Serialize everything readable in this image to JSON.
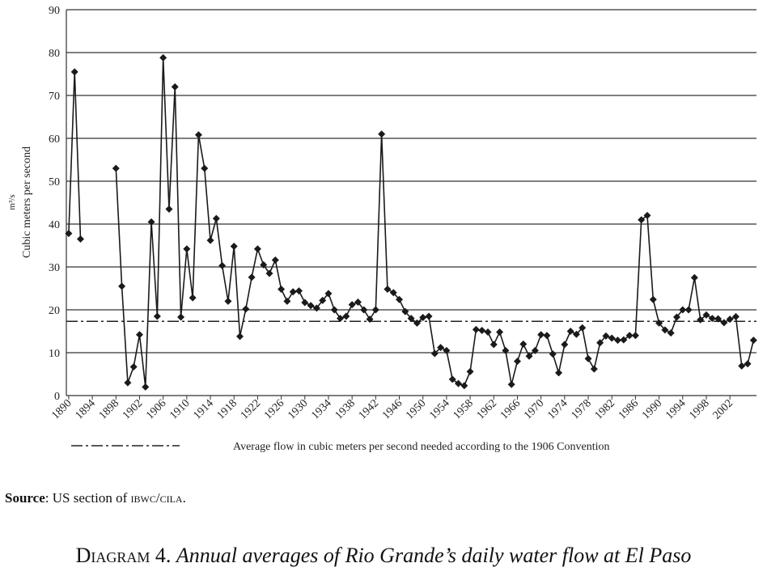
{
  "chart_data": {
    "type": "line",
    "ylabel": "Cubic meters per second",
    "yunit": "m³/s",
    "x": [
      1890,
      1891,
      1892,
      1893,
      1894,
      1895,
      1896,
      1897,
      1898,
      1899,
      1900,
      1901,
      1902,
      1903,
      1904,
      1905,
      1906,
      1907,
      1908,
      1909,
      1910,
      1911,
      1912,
      1913,
      1914,
      1915,
      1916,
      1917,
      1918,
      1919,
      1920,
      1921,
      1922,
      1923,
      1924,
      1925,
      1926,
      1927,
      1928,
      1929,
      1930,
      1931,
      1932,
      1933,
      1934,
      1935,
      1936,
      1937,
      1938,
      1939,
      1940,
      1941,
      1942,
      1943,
      1944,
      1945,
      1946,
      1947,
      1948,
      1949,
      1950,
      1951,
      1952,
      1953,
      1954,
      1955,
      1956,
      1957,
      1958,
      1959,
      1960,
      1961,
      1962,
      1963,
      1964,
      1965,
      1966,
      1967,
      1968,
      1969,
      1970,
      1971,
      1972,
      1973,
      1974,
      1975,
      1976,
      1977,
      1978,
      1979,
      1980,
      1981,
      1982,
      1983,
      1984,
      1985,
      1986,
      1987,
      1988,
      1989,
      1990,
      1991,
      1992,
      1993,
      1994,
      1995,
      1996,
      1997,
      1998,
      1999,
      2000,
      2001,
      2002,
      2003,
      2004,
      2005,
      2006
    ],
    "series": [
      {
        "color": "#1a1a1a",
        "values": [
          37.8,
          75.5,
          36.5,
          null,
          null,
          null,
          null,
          null,
          53,
          25.5,
          3,
          6.7,
          14.2,
          2,
          40.5,
          18.5,
          78.8,
          43.5,
          72,
          18.3,
          34.2,
          22.8,
          60.8,
          53,
          36.2,
          41.3,
          30.3,
          22,
          34.8,
          13.8,
          20.2,
          27.6,
          34.2,
          30.5,
          28.5,
          31.6,
          24.8,
          22,
          24.2,
          24.4,
          21.7,
          21,
          20.4,
          22.2,
          23.8,
          20,
          18,
          18.5,
          21.2,
          21.8,
          20,
          17.8,
          20,
          61,
          24.8,
          24,
          22.4,
          19.6,
          18,
          16.9,
          18.2,
          18.5,
          9.8,
          11.2,
          10.5,
          3.8,
          2.8,
          2.3,
          5.6,
          15.4,
          15.2,
          14.8,
          11.9,
          14.8,
          10.5,
          2.6,
          8,
          12,
          9.2,
          10.5,
          14.2,
          14,
          9.7,
          5.3,
          11.9,
          15,
          14.3,
          15.8,
          8.6,
          6.2,
          12.3,
          13.9,
          13.4,
          12.9,
          13,
          14,
          14,
          41,
          42,
          22.4,
          16.9,
          15.3,
          14.6,
          18.3,
          20,
          20,
          27.5,
          17.7,
          18.8,
          18,
          17.9,
          17,
          17.8,
          18.4,
          6.9,
          7.4,
          12.9
        ]
      }
    ],
    "xlim": [
      1889.6,
      2006.5
    ],
    "xticks": [
      1890,
      1894,
      1898,
      1902,
      1906,
      1910,
      1914,
      1918,
      1922,
      1926,
      1930,
      1934,
      1938,
      1942,
      1946,
      1950,
      1954,
      1958,
      1962,
      1966,
      1970,
      1974,
      1978,
      1982,
      1986,
      1990,
      1994,
      1998,
      2002
    ],
    "ylim": [
      0,
      90
    ],
    "yticks": [
      0,
      10,
      20,
      30,
      40,
      50,
      60,
      70,
      80,
      90
    ],
    "grid": true,
    "reference_line": {
      "value": 17.3,
      "label": "Average flow in cubic meters per second needed according to the 1906 Convention"
    }
  },
  "source": [
    "Source",
    ": US section of ",
    "IBWC/CILA",
    "."
  ],
  "caption": {
    "label": "Diagram 4.",
    "text": "Annual averages of Rio Grande’s daily water flow at El Paso"
  }
}
